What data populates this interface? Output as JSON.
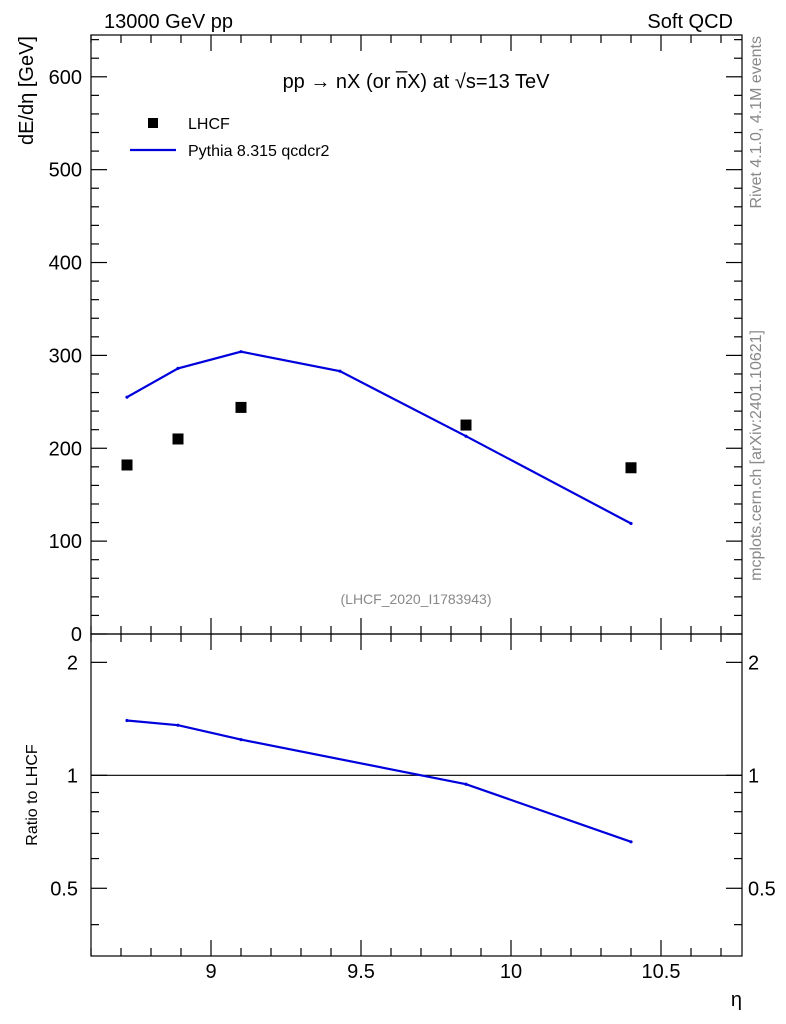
{
  "header": {
    "left": "13000 GeV pp",
    "right": "Soft QCD"
  },
  "side_labels": {
    "rivet": "Rivet 4.1.0,  4.1M events",
    "mcplots": "mcplots.cern.ch [arXiv:2401.10621]"
  },
  "colors": {
    "mc": "#0000dd",
    "data": "#000000",
    "watermark": "#888888"
  },
  "chart_data": [
    {
      "type": "scatter",
      "panel": "main",
      "title": "pp → nX (or n̅X) at √s=13 TeV",
      "xlabel": "η",
      "ylabel": "dE/dη [GeV]",
      "xlim": [
        8.6,
        10.77
      ],
      "ylim": [
        0,
        645
      ],
      "yticks": [
        0,
        100,
        200,
        300,
        400,
        500,
        600
      ],
      "ytick_labels": [
        "0",
        "100",
        "200",
        "300",
        "400",
        "500",
        "600"
      ],
      "watermark": "(LHCF_2020_I1783943)",
      "legend_position": "top-left",
      "series": [
        {
          "name": "LHCF",
          "kind": "markers",
          "x": [
            8.72,
            8.89,
            9.1,
            9.85,
            10.4
          ],
          "y": [
            182,
            210,
            244,
            225,
            179
          ]
        },
        {
          "name": "Pythia 8.315 qcdcr2",
          "kind": "line",
          "x": [
            8.72,
            8.89,
            9.1,
            9.43,
            9.85,
            10.4
          ],
          "y": [
            255,
            286,
            304,
            283,
            213,
            119
          ]
        }
      ]
    },
    {
      "type": "line",
      "panel": "ratio",
      "xlabel": "η",
      "ylabel": "Ratio to LHCF",
      "xlim": [
        8.6,
        10.77
      ],
      "ylim": [
        0.33,
        2.38
      ],
      "log_y": true,
      "yticks": [
        0.5,
        1,
        2
      ],
      "ytick_labels": [
        "0.5",
        "1",
        "2"
      ],
      "xticks": [
        9,
        9.5,
        10,
        10.5
      ],
      "xtick_labels": [
        "9",
        "9.5",
        "10",
        "10.5"
      ],
      "reference": 1,
      "series": [
        {
          "name": "Pythia 8.315 qcdcr2 / LHCF",
          "x": [
            8.72,
            8.89,
            9.1,
            9.85,
            10.4
          ],
          "y": [
            1.4,
            1.36,
            1.245,
            0.947,
            0.665
          ]
        }
      ]
    }
  ]
}
